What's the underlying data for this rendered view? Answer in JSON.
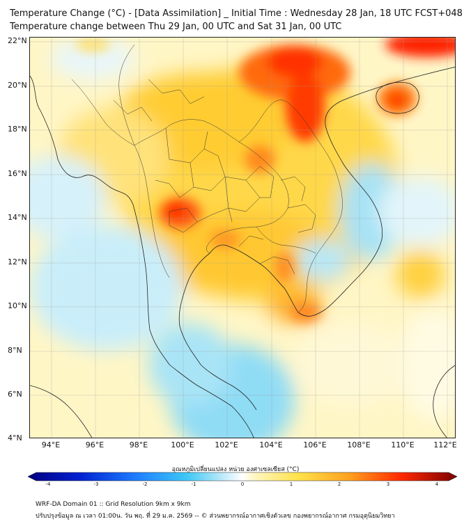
{
  "header": {
    "title": "Temperature Change (°C) - [Data Assimilation] _ Initial Time : Wednesday 28 Jan, 18 UTC FCST+048",
    "subtitle": "Temperature change between Thu 29 Jan, 00 UTC and Sat 31 Jan, 00 UTC"
  },
  "map": {
    "lat_labels": [
      "22°N",
      "20°N",
      "18°N",
      "16°N",
      "14°N",
      "12°N",
      "10°N",
      "8°N",
      "6°N",
      "4°N"
    ],
    "lon_labels": [
      "94°E",
      "96°E",
      "98°E",
      "100°E",
      "102°E",
      "104°E",
      "106°E",
      "108°E",
      "110°E",
      "112°E"
    ],
    "colors": {
      "strong_cool": "#1e90ff",
      "cool": "#5fd0f5",
      "light_cool": "#cfeefa",
      "neutral": "#ffffff",
      "light_warm": "#fff3b0",
      "warm": "#ffd23c",
      "hot": "#ff8c1a",
      "very_hot": "#ff2a00"
    }
  },
  "colorbar": {
    "label": "อุณหภูมิเปลี่ยนแปลง หน่วย องศาเซลเซียส (°C)",
    "ticks": [
      "-4",
      "-3",
      "-2",
      "-1",
      "0",
      "1",
      "2",
      "3",
      "4"
    ]
  },
  "footer": {
    "line1": "WRF-DA Domain 01 :: Grid Resolution 9km x 9km",
    "line2": "ปรับปรุงข้อมูล ณ เวลา 01:00น. วัน พฤ. ที่ 29 ม.ค. 2569 -- © ส่วนพยากรณ์อากาศเชิงตัวเลข กองพยากรณ์อากาศ กรมอุตุนิยมวิทยา"
  }
}
